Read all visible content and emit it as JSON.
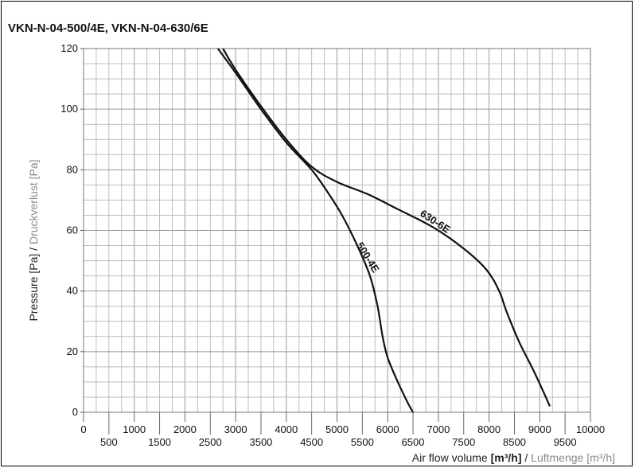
{
  "title": "VKN-N-04-500/4E, VKN-N-04-630/6E",
  "y_axis_label": {
    "main": "Pressure [Pa] / ",
    "alt": "Druckverlust [Pa]"
  },
  "x_axis_label": {
    "main": "Air flow volume ",
    "unit": "[m³/h]",
    "sep": " / ",
    "alt": "Luftmenge [m³/h]"
  },
  "chart_data": {
    "type": "line",
    "title": "VKN-N-04-500/4E, VKN-N-04-630/6E",
    "xlabel": "Air flow volume [m³/h] / Luftmenge [m³/h]",
    "ylabel": "Pressure [Pa] / Druckverlust [Pa]",
    "xlim": [
      0,
      10000
    ],
    "ylim": [
      0,
      120
    ],
    "x_ticks_row1": [
      0,
      1000,
      2000,
      3000,
      4000,
      5000,
      6000,
      7000,
      8000,
      9000,
      10000
    ],
    "x_ticks_row2": [
      500,
      1500,
      2500,
      3500,
      4500,
      5500,
      6500,
      7500,
      8500,
      9500
    ],
    "y_ticks": [
      0,
      20,
      40,
      60,
      80,
      100,
      120
    ],
    "grid": true,
    "series": [
      {
        "name": "500-4E",
        "x": [
          2650,
          3000,
          3500,
          4000,
          4500,
          4800,
          5100,
          5400,
          5650,
          5800,
          5900,
          6000,
          6200,
          6400,
          6500
        ],
        "y": [
          120,
          112,
          100,
          89,
          80,
          73,
          65,
          55,
          45,
          35,
          25,
          18,
          10,
          3,
          0
        ]
      },
      {
        "name": "630-6E",
        "x": [
          2750,
          3000,
          3500,
          4000,
          4500,
          5000,
          5600,
          6200,
          6900,
          7500,
          7950,
          8200,
          8350,
          8600,
          8900,
          9200
        ],
        "y": [
          120,
          113,
          101,
          90,
          81,
          76,
          72,
          67,
          61,
          54,
          47,
          40,
          33,
          23,
          13,
          2
        ]
      }
    ]
  }
}
